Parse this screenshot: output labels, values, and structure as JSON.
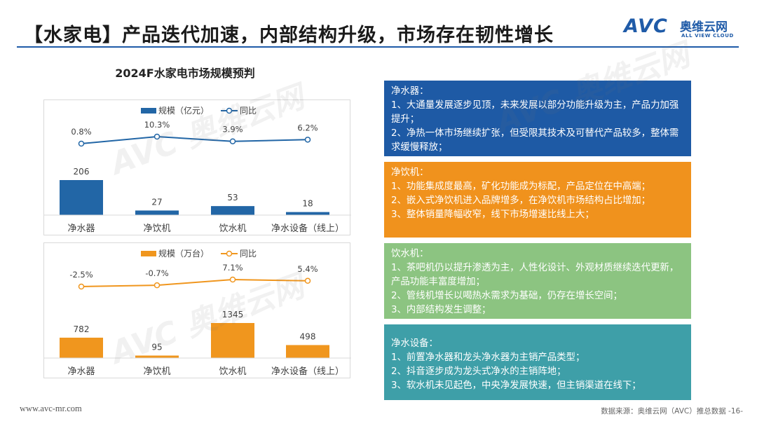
{
  "header": {
    "title": "【水家电】产品迭代加速，内部结构升级，市场存在韧性增长",
    "logo_text": "AVC",
    "logo_cn": "奥维云网",
    "logo_en": "ALL VIEW CLOUD"
  },
  "colors": {
    "brand_blue": "#1f5ba8",
    "bar_blue": "#2266a6",
    "bar_orange": "#f0961e",
    "box_blue": "#1e5aa5",
    "box_orange": "#f0921d",
    "box_green": "#8cc481",
    "box_teal": "#3e9fa8"
  },
  "chart_heading": "2024F水家电市场规模预判",
  "chart_data": [
    {
      "type": "bar",
      "categories": [
        "净水器",
        "净饮机",
        "饮水机",
        "净水设备（线上）"
      ],
      "series": [
        {
          "name": "规模（亿元）",
          "type": "bar",
          "values": [
            206,
            27,
            53,
            18
          ],
          "labels": [
            "206",
            "27",
            "53",
            "18"
          ]
        },
        {
          "name": "同比",
          "type": "line",
          "values": [
            0.8,
            10.3,
            3.9,
            6.2
          ],
          "labels": [
            "0.8%",
            "10.3%",
            "3.9%",
            "6.2%"
          ]
        }
      ],
      "legend_position": "top"
    },
    {
      "type": "bar",
      "categories": [
        "净水器",
        "净饮机",
        "饮水机",
        "净水设备（线上）"
      ],
      "series": [
        {
          "name": "规模（万台）",
          "type": "bar",
          "values": [
            782,
            95,
            1345,
            498
          ],
          "labels": [
            "782",
            "95",
            "1345",
            "498"
          ]
        },
        {
          "name": "同比",
          "type": "line",
          "values": [
            -2.5,
            -0.7,
            7.1,
            5.4
          ],
          "labels": [
            "-2.5%",
            "-0.7%",
            "7.1%",
            "5.4%"
          ]
        }
      ],
      "legend_position": "top"
    }
  ],
  "boxes": [
    {
      "title": "净水器：",
      "lines": [
        "1、大通量发展逐步见顶，未来发展以部分功能升级为主，产品力加强提升；",
        "2、净热一体市场继续扩张，但受限其技术及可替代产品较多，整体需求缓慢释放；"
      ]
    },
    {
      "title": "净饮机：",
      "lines": [
        "1、功能集成度最高，矿化功能成为标配，产品定位在中高端；",
        "2、嵌入式净饮机进入品牌增多，在净饮机市场结构占比增加；",
        "3、整体销量降幅收窄，线下市场增速比线上大；"
      ]
    },
    {
      "title": "饮水机：",
      "lines": [
        "1、茶吧机仍以提升渗透为主，人性化设计、外观材质继续迭代更新，产品功能丰富度增加；",
        "2、管线机增长以喝热水需求为基础，仍存在增长空间；",
        "3、内部结构发生调整；"
      ]
    },
    {
      "title": "净水设备：",
      "lines": [
        "1、前置净水器和龙头净水器为主销产品类型；",
        "2、抖音逐步成为龙头式净水的主销阵地；",
        "3、软水机未见起色，中央净发展快速，但主销渠道在线下；"
      ]
    }
  ],
  "footer": {
    "url": "www.avc-mr.com",
    "source": "数据来源：奥维云网（AVC）推总数据 -16-"
  }
}
